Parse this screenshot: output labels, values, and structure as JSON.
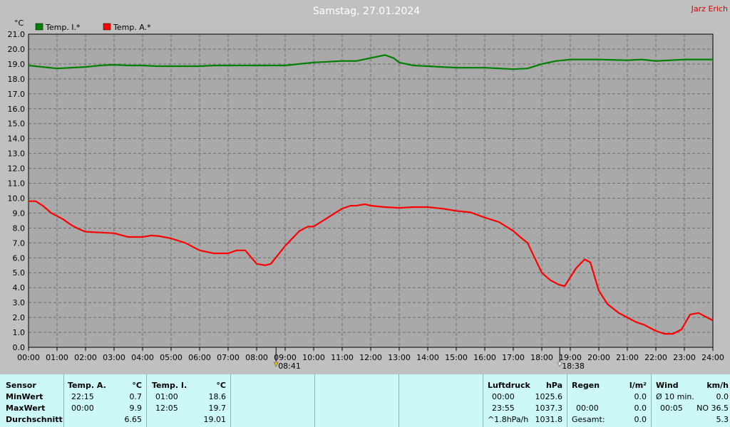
{
  "header": {
    "title": "Samstag, 27.01.2024",
    "author": "Jarz Erich"
  },
  "chart_data": {
    "type": "line",
    "title": "Samstag, 27.01.2024",
    "ylabel": "°C",
    "ylim": [
      0,
      21
    ],
    "xlim": [
      0,
      24
    ],
    "grid": true,
    "legend_placement": "top-left",
    "yticks": [
      "0.0",
      "1.0",
      "2.0",
      "3.0",
      "4.0",
      "5.0",
      "6.0",
      "7.0",
      "8.0",
      "9.0",
      "10.0",
      "11.0",
      "12.0",
      "13.0",
      "14.0",
      "15.0",
      "16.0",
      "17.0",
      "18.0",
      "19.0",
      "20.0",
      "21.0"
    ],
    "xticks": [
      "00:00",
      "01:00",
      "02:00",
      "03:00",
      "04:00",
      "05:00",
      "06:00",
      "07:00",
      "08:00",
      "09:00",
      "10:00",
      "11:00",
      "12:00",
      "13:00",
      "14:00",
      "15:00",
      "16:00",
      "17:00",
      "18:00",
      "19:00",
      "20:00",
      "21:00",
      "22:00",
      "23:00",
      "24:00"
    ],
    "series": [
      {
        "name": "Temp. I.*",
        "color": "#008000",
        "points": [
          [
            0,
            18.9
          ],
          [
            0.5,
            18.8
          ],
          [
            1,
            18.7
          ],
          [
            1.5,
            18.75
          ],
          [
            2,
            18.8
          ],
          [
            2.5,
            18.9
          ],
          [
            3,
            18.95
          ],
          [
            3.5,
            18.9
          ],
          [
            4,
            18.9
          ],
          [
            4.5,
            18.85
          ],
          [
            5,
            18.85
          ],
          [
            6,
            18.85
          ],
          [
            6.5,
            18.9
          ],
          [
            7,
            18.9
          ],
          [
            8,
            18.9
          ],
          [
            9,
            18.9
          ],
          [
            9.5,
            19.0
          ],
          [
            10,
            19.1
          ],
          [
            11,
            19.2
          ],
          [
            11.5,
            19.2
          ],
          [
            12,
            19.4
          ],
          [
            12.5,
            19.6
          ],
          [
            12.8,
            19.4
          ],
          [
            13,
            19.1
          ],
          [
            13.5,
            18.9
          ],
          [
            14,
            18.85
          ],
          [
            14.5,
            18.8
          ],
          [
            15,
            18.75
          ],
          [
            16,
            18.75
          ],
          [
            17,
            18.65
          ],
          [
            17.5,
            18.7
          ],
          [
            18,
            19.0
          ],
          [
            18.5,
            19.2
          ],
          [
            19,
            19.3
          ],
          [
            20,
            19.3
          ],
          [
            21,
            19.25
          ],
          [
            21.5,
            19.3
          ],
          [
            22,
            19.2
          ],
          [
            22.5,
            19.25
          ],
          [
            23,
            19.3
          ],
          [
            24,
            19.3
          ]
        ]
      },
      {
        "name": "Temp. A.*",
        "color": "#ff0000",
        "points": [
          [
            0,
            9.8
          ],
          [
            0.25,
            9.8
          ],
          [
            0.5,
            9.5
          ],
          [
            0.8,
            9.0
          ],
          [
            1.2,
            8.6
          ],
          [
            1.5,
            8.2
          ],
          [
            1.8,
            7.9
          ],
          [
            2,
            7.75
          ],
          [
            2.5,
            7.7
          ],
          [
            3,
            7.65
          ],
          [
            3.5,
            7.4
          ],
          [
            4,
            7.4
          ],
          [
            4.3,
            7.5
          ],
          [
            4.6,
            7.45
          ],
          [
            5,
            7.3
          ],
          [
            5.5,
            7.0
          ],
          [
            6,
            6.5
          ],
          [
            6.5,
            6.3
          ],
          [
            7,
            6.3
          ],
          [
            7.3,
            6.5
          ],
          [
            7.6,
            6.5
          ],
          [
            8,
            5.6
          ],
          [
            8.3,
            5.5
          ],
          [
            8.5,
            5.6
          ],
          [
            9,
            6.8
          ],
          [
            9.5,
            7.8
          ],
          [
            9.8,
            8.1
          ],
          [
            10,
            8.1
          ],
          [
            10.5,
            8.7
          ],
          [
            11,
            9.3
          ],
          [
            11.3,
            9.5
          ],
          [
            11.5,
            9.5
          ],
          [
            11.8,
            9.6
          ],
          [
            12,
            9.5
          ],
          [
            12.5,
            9.4
          ],
          [
            13,
            9.35
          ],
          [
            13.5,
            9.4
          ],
          [
            14,
            9.4
          ],
          [
            14.5,
            9.3
          ],
          [
            15,
            9.15
          ],
          [
            15.5,
            9.05
          ],
          [
            16,
            8.7
          ],
          [
            16.5,
            8.4
          ],
          [
            17,
            7.8
          ],
          [
            17.3,
            7.3
          ],
          [
            17.5,
            7.0
          ],
          [
            18,
            5.0
          ],
          [
            18.3,
            4.5
          ],
          [
            18.6,
            4.2
          ],
          [
            18.8,
            4.1
          ],
          [
            19.2,
            5.3
          ],
          [
            19.5,
            5.9
          ],
          [
            19.7,
            5.7
          ],
          [
            20,
            3.8
          ],
          [
            20.3,
            2.9
          ],
          [
            20.7,
            2.3
          ],
          [
            21,
            2.0
          ],
          [
            21.3,
            1.7
          ],
          [
            21.6,
            1.5
          ],
          [
            22,
            1.1
          ],
          [
            22.3,
            0.9
          ],
          [
            22.6,
            0.9
          ],
          [
            22.9,
            1.2
          ],
          [
            23.2,
            2.2
          ],
          [
            23.5,
            2.3
          ],
          [
            23.8,
            2.0
          ],
          [
            24,
            1.8
          ]
        ]
      }
    ],
    "markers": [
      {
        "label": "08:41",
        "time": 8.68,
        "kind": "sunrise"
      },
      {
        "label": "18:38",
        "time": 18.63,
        "kind": "sunset"
      }
    ]
  },
  "stats": {
    "sensor": {
      "header": "Sensor",
      "rows": [
        "MinWert",
        "MaxWert",
        "Durchschnitt"
      ]
    },
    "temp_a": {
      "header": "Temp. A.",
      "unit": "°C",
      "min_time": "22:15",
      "min_val": "0.7",
      "max_time": "00:00",
      "max_val": "9.9",
      "avg": "6.65"
    },
    "temp_i": {
      "header": "Temp. I.",
      "unit": "°C",
      "min_time": "01:00",
      "min_val": "18.6",
      "max_time": "12:05",
      "max_val": "19.7",
      "avg": "19.01"
    },
    "pressure": {
      "header": "Luftdruck",
      "unit": "hPa",
      "r1_time": "00:00",
      "r1_val": "1025.6",
      "r2_time": "23:55",
      "r2_val": "1037.3",
      "r3_label": "^1.8hPa/h",
      "r3_val": "1031.8"
    },
    "rain": {
      "header": "Regen",
      "unit": "l/m²",
      "r1_val": "0.0",
      "r2_time": "00:00",
      "r2_val": "0.0",
      "r3_label": "Gesamt:",
      "r3_val": "0.0"
    },
    "wind": {
      "header": "Wind",
      "unit": "km/h",
      "r1_label": "Ø 10 min.",
      "r1_val": "0.0",
      "r2_time": "00:05",
      "r2_val": "NO 36.5",
      "r3_val": "5.3"
    }
  }
}
